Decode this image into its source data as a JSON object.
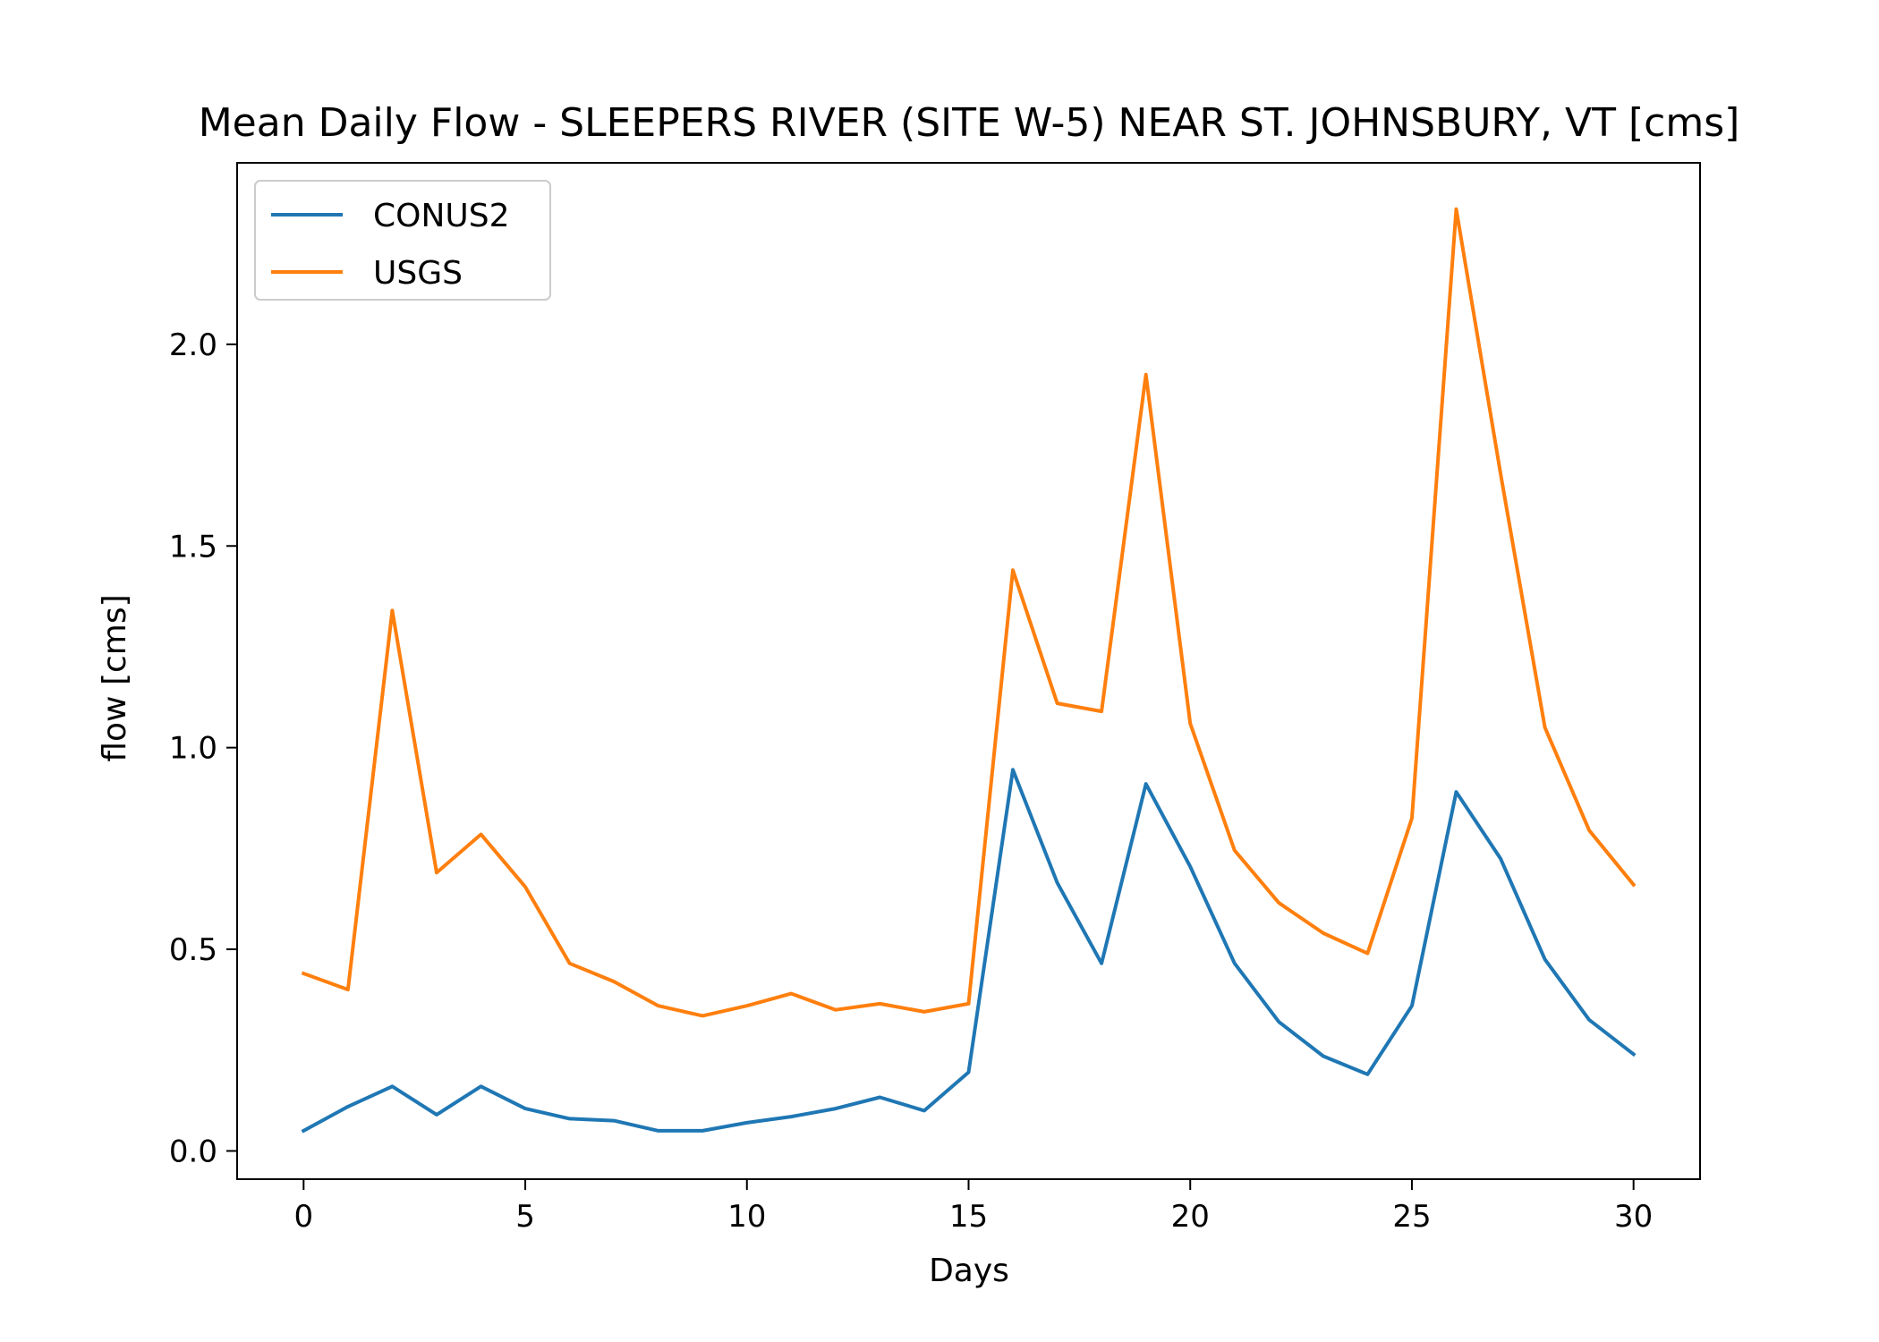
{
  "chart_data": {
    "type": "line",
    "title": "Mean Daily Flow - SLEEPERS RIVER (SITE W-5) NEAR ST. JOHNSBURY, VT [cms]",
    "xlabel": "Days",
    "ylabel": "flow [cms]",
    "xlim": [
      -1.5,
      31.5
    ],
    "ylim": [
      -0.07,
      2.45
    ],
    "xticks": [
      0,
      5,
      10,
      15,
      20,
      25,
      30
    ],
    "xtick_labels": [
      "0",
      "5",
      "10",
      "15",
      "20",
      "25",
      "30"
    ],
    "yticks": [
      0.0,
      0.5,
      1.0,
      1.5,
      2.0
    ],
    "ytick_labels": [
      "0.0",
      "0.5",
      "1.0",
      "1.5",
      "2.0"
    ],
    "grid": false,
    "legend_position": "upper-left",
    "x": [
      0,
      1,
      2,
      3,
      4,
      5,
      6,
      7,
      8,
      9,
      10,
      11,
      12,
      13,
      14,
      15,
      16,
      17,
      18,
      19,
      20,
      21,
      22,
      23,
      24,
      25,
      26,
      27,
      28,
      29,
      30
    ],
    "series": [
      {
        "name": "CONUS2",
        "color": "#1f77b4",
        "values": [
          0.05,
          0.11,
          0.16,
          0.09,
          0.16,
          0.105,
          0.08,
          0.075,
          0.05,
          0.05,
          0.07,
          0.085,
          0.105,
          0.133,
          0.1,
          0.195,
          0.945,
          0.665,
          0.465,
          0.91,
          0.705,
          0.465,
          0.32,
          0.235,
          0.19,
          0.36,
          0.89,
          0.725,
          0.475,
          0.325,
          0.24
        ]
      },
      {
        "name": "USGS",
        "color": "#ff7f0e",
        "values": [
          0.44,
          0.4,
          1.34,
          0.69,
          0.785,
          0.655,
          0.465,
          0.42,
          0.36,
          0.335,
          0.36,
          0.39,
          0.35,
          0.365,
          0.345,
          0.365,
          1.44,
          1.11,
          1.09,
          1.925,
          1.06,
          0.745,
          0.615,
          0.54,
          0.49,
          0.825,
          2.335,
          1.68,
          1.05,
          0.795,
          0.66
        ]
      }
    ]
  }
}
